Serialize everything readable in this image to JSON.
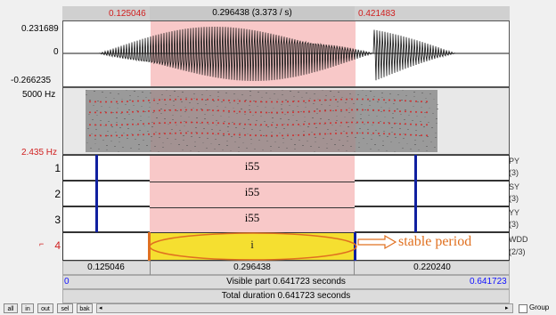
{
  "selection": {
    "start": "0.125046",
    "center": "0.296438 (3.373 / s)",
    "end": "0.421483"
  },
  "waveform": {
    "max": "0.231689",
    "zero": "0",
    "min": "-0.266235"
  },
  "spectrogram": {
    "top_freq": "5000 Hz",
    "bottom_freq": "2.435 Hz"
  },
  "tiers": [
    {
      "number": "1",
      "text": "i55",
      "name": "PY",
      "count": "(3)"
    },
    {
      "number": "2",
      "text": "i55",
      "name": "SY",
      "count": "(3)"
    },
    {
      "number": "3",
      "text": "i55",
      "name": "YY",
      "count": "(3)"
    },
    {
      "number": "4",
      "text": "i",
      "name": "WDD",
      "count": "(2/3)"
    }
  ],
  "annotation": "stable period",
  "durations": {
    "left": "0.125046",
    "center": "0.296438",
    "right": "0.220240"
  },
  "visible": {
    "start": "0",
    "label": "Visible part 0.641723 seconds",
    "end": "0.641723"
  },
  "total": "Total duration 0.641723 seconds",
  "buttons": {
    "all": "all",
    "in": "in",
    "out": "out",
    "sel": "sel",
    "bak": "bak",
    "group": "Group"
  }
}
